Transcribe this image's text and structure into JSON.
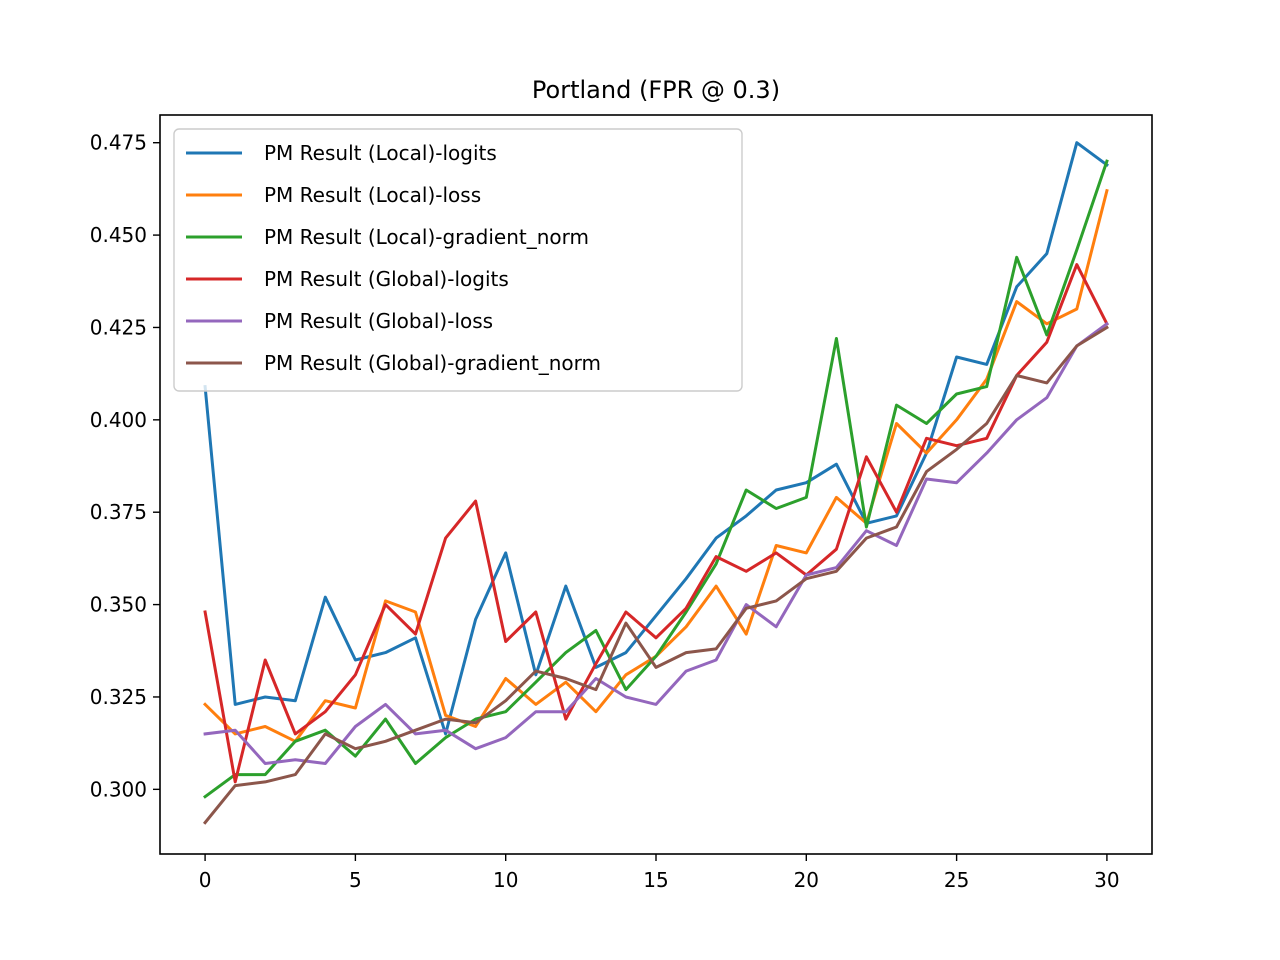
{
  "chart_data": {
    "type": "line",
    "title": "Portland (FPR @ 0.3)",
    "xlabel": "",
    "ylabel": "",
    "xlim": [
      -1.5,
      31.5
    ],
    "ylim": [
      0.2825,
      0.4825
    ],
    "xticks": [
      0,
      5,
      10,
      15,
      20,
      25,
      30
    ],
    "yticks": [
      0.3,
      0.325,
      0.35,
      0.375,
      0.4,
      0.425,
      0.45,
      0.475
    ],
    "ytick_labels": [
      "0.300",
      "0.325",
      "0.350",
      "0.375",
      "0.400",
      "0.425",
      "0.450",
      "0.475"
    ],
    "grid": false,
    "legend_position": "top-left",
    "x": [
      0,
      1,
      2,
      3,
      4,
      5,
      6,
      7,
      8,
      9,
      10,
      11,
      12,
      13,
      14,
      15,
      16,
      17,
      18,
      19,
      20,
      21,
      22,
      23,
      24,
      25,
      26,
      27,
      28,
      29,
      30
    ],
    "series": [
      {
        "name": "PM Result (Local)-logits",
        "color": "#1f77b4",
        "values": [
          0.409,
          0.323,
          0.325,
          0.324,
          0.352,
          0.335,
          0.337,
          0.341,
          0.315,
          0.346,
          0.364,
          0.331,
          0.355,
          0.333,
          0.337,
          0.347,
          0.357,
          0.368,
          0.374,
          0.381,
          0.383,
          0.388,
          0.372,
          0.374,
          0.391,
          0.417,
          0.415,
          0.436,
          0.445,
          0.475,
          0.469
        ]
      },
      {
        "name": "PM Result (Local)-loss",
        "color": "#ff7f0e",
        "values": [
          0.323,
          0.315,
          0.317,
          0.313,
          0.324,
          0.322,
          0.351,
          0.348,
          0.32,
          0.317,
          0.33,
          0.323,
          0.329,
          0.321,
          0.331,
          0.336,
          0.344,
          0.355,
          0.342,
          0.366,
          0.364,
          0.379,
          0.372,
          0.399,
          0.391,
          0.4,
          0.411,
          0.432,
          0.426,
          0.43,
          0.462
        ]
      },
      {
        "name": "PM Result (Local)-gradient_norm",
        "color": "#2ca02c",
        "values": [
          0.298,
          0.304,
          0.304,
          0.313,
          0.316,
          0.309,
          0.319,
          0.307,
          0.314,
          0.319,
          0.321,
          0.329,
          0.337,
          0.343,
          0.327,
          0.336,
          0.348,
          0.361,
          0.381,
          0.376,
          0.379,
          0.422,
          0.371,
          0.404,
          0.399,
          0.407,
          0.409,
          0.444,
          0.423,
          0.446,
          0.47
        ]
      },
      {
        "name": "PM Result (Global)-logits",
        "color": "#d62728",
        "values": [
          0.348,
          0.302,
          0.335,
          0.315,
          0.321,
          0.331,
          0.35,
          0.342,
          0.368,
          0.378,
          0.34,
          0.348,
          0.319,
          0.334,
          0.348,
          0.341,
          0.349,
          0.363,
          0.359,
          0.364,
          0.358,
          0.365,
          0.39,
          0.375,
          0.395,
          0.393,
          0.395,
          0.412,
          0.421,
          0.442,
          0.426
        ]
      },
      {
        "name": "PM Result (Global)-loss",
        "color": "#9467bd",
        "values": [
          0.315,
          0.316,
          0.307,
          0.308,
          0.307,
          0.317,
          0.323,
          0.315,
          0.316,
          0.311,
          0.314,
          0.321,
          0.321,
          0.33,
          0.325,
          0.323,
          0.332,
          0.335,
          0.35,
          0.344,
          0.358,
          0.36,
          0.37,
          0.366,
          0.384,
          0.383,
          0.391,
          0.4,
          0.406,
          0.42,
          0.426
        ]
      },
      {
        "name": "PM Result (Global)-gradient_norm",
        "color": "#8c564b",
        "values": [
          0.291,
          0.301,
          0.302,
          0.304,
          0.315,
          0.311,
          0.313,
          0.316,
          0.319,
          0.318,
          0.324,
          0.332,
          0.33,
          0.327,
          0.345,
          0.333,
          0.337,
          0.338,
          0.349,
          0.351,
          0.357,
          0.359,
          0.368,
          0.371,
          0.386,
          0.392,
          0.399,
          0.412,
          0.41,
          0.42,
          0.425
        ]
      }
    ]
  }
}
